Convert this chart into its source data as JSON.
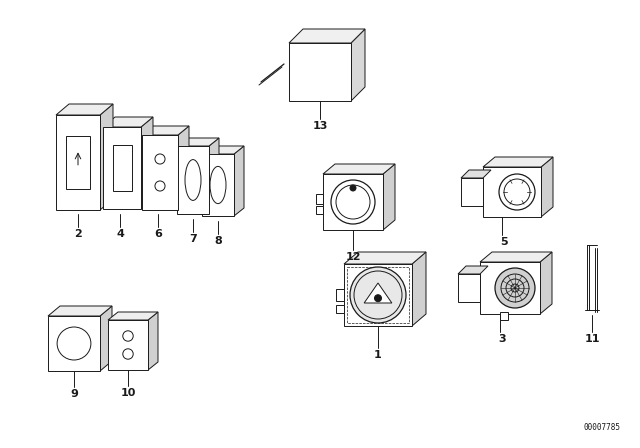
{
  "bg_color": "#ffffff",
  "line_color": "#1a1a1a",
  "fig_width": 6.4,
  "fig_height": 4.48,
  "dpi": 100,
  "part_number": "00007785"
}
